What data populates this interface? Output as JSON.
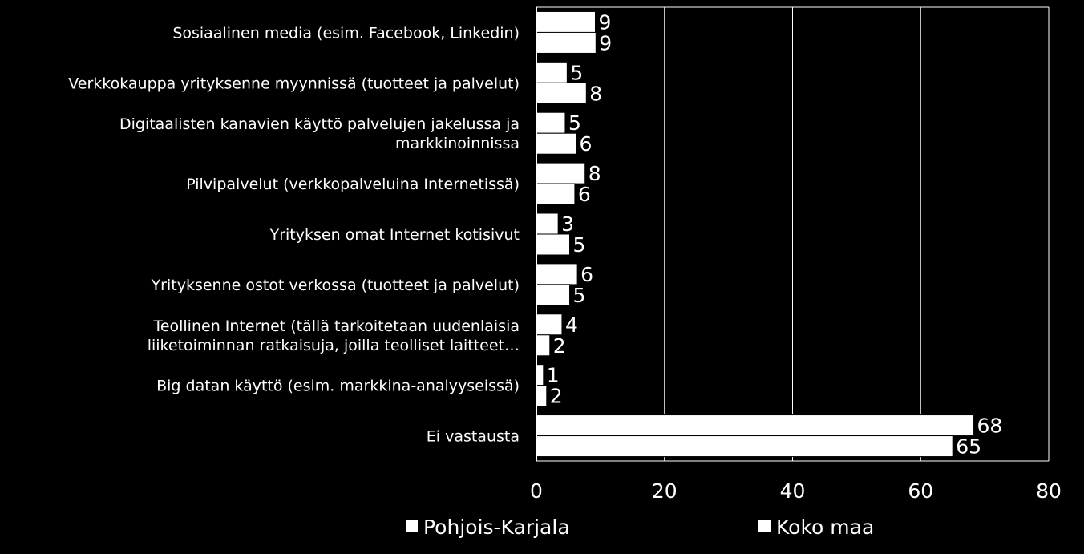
{
  "chart_data": {
    "type": "bar",
    "orientation": "horizontal",
    "title": "",
    "xlabel": "",
    "ylabel": "",
    "xlim": [
      0,
      80
    ],
    "x_ticks": [
      0,
      20,
      40,
      60,
      80
    ],
    "grid": true,
    "legend_position": "bottom",
    "colors": {
      "background": "#000000",
      "bar": "#ffffff",
      "text": "#ffffff",
      "grid": "#ffffff"
    },
    "categories": [
      [
        "Sosiaalinen media (esim. Facebook, Linkedin)"
      ],
      [
        "Verkkokauppa yrityksenne myynnissä (tuotteet ja palvelut)"
      ],
      [
        "Digitaalisten kanavien käyttö palvelujen jakelussa ja",
        "markkinoinnissa"
      ],
      [
        "Pilvipalvelut  (verkkopalveluina Internetissä)"
      ],
      [
        "Yrityksen omat Internet kotisivut"
      ],
      [
        "Yrityksenne ostot verkossa (tuotteet ja palvelut)"
      ],
      [
        "Teollinen Internet (tällä tarkoitetaan uudenlaisia",
        "liiketoiminnan ratkaisuja, joilla teolliset laitteet…"
      ],
      [
        "Big datan käyttö (esim. markkina-analyyseissä)"
      ],
      [
        "Ei vastausta"
      ]
    ],
    "series": [
      {
        "name": "Pohjois-Karjala",
        "values": [
          9.2,
          4.8,
          4.5,
          7.6,
          3.4,
          6.4,
          4.0,
          1.1,
          68.3
        ],
        "labels": [
          "9",
          "5",
          "5",
          "8",
          "3",
          "6",
          "4",
          "1",
          "68"
        ]
      },
      {
        "name": "Koko maa",
        "values": [
          9.3,
          7.8,
          6.2,
          6.0,
          5.2,
          5.2,
          2.1,
          1.6,
          65.0
        ],
        "labels": [
          "9",
          "8",
          "6",
          "6",
          "5",
          "5",
          "2",
          "2",
          "65"
        ]
      }
    ]
  }
}
